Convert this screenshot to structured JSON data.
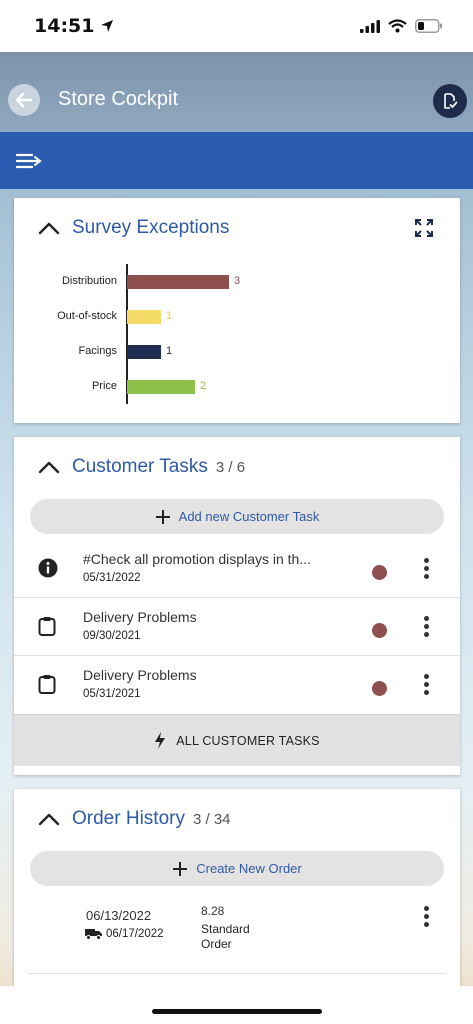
{
  "status_bar": {
    "time": "14:51"
  },
  "header": {
    "title": "Store Cockpit"
  },
  "survey": {
    "title": "Survey Exceptions",
    "chart_data": {
      "type": "bar",
      "orientation": "horizontal",
      "categories": [
        "Distribution",
        "Out-of-stock",
        "Facings",
        "Price"
      ],
      "values": [
        3,
        1,
        1,
        2
      ],
      "value_labels": [
        "3",
        "1",
        "1",
        "2"
      ],
      "colors": [
        "#8e4f4f",
        "#f5dc68",
        "#1e2e52",
        "#8fc04a"
      ],
      "xlim": [
        0,
        3
      ],
      "grid": false,
      "title": "",
      "xlabel": "",
      "ylabel": ""
    }
  },
  "tasks": {
    "title": "Customer Tasks",
    "count": "3 / 6",
    "add_label": "Add new Customer Task",
    "items": [
      {
        "title": "#Check all promotion displays in th...",
        "date": "05/31/2022",
        "icon": "info-icon"
      },
      {
        "title": "Delivery Problems",
        "date": "09/30/2021",
        "icon": "clipboard-icon"
      },
      {
        "title": "Delivery Problems",
        "date": "05/31/2021",
        "icon": "clipboard-icon"
      }
    ],
    "status_color": "#8e4f4f",
    "all_label": "ALL CUSTOMER TASKS"
  },
  "orders": {
    "title": "Order History",
    "count": "3 / 34",
    "create_label": "Create New Order",
    "items": [
      {
        "date": "06/13/2022",
        "delivery_date": "06/17/2022",
        "amount": "8.28",
        "type": "Standard Order"
      }
    ]
  },
  "theme": {
    "accent": "#2d5aa8",
    "nav_bar": "#2a5bb0"
  }
}
